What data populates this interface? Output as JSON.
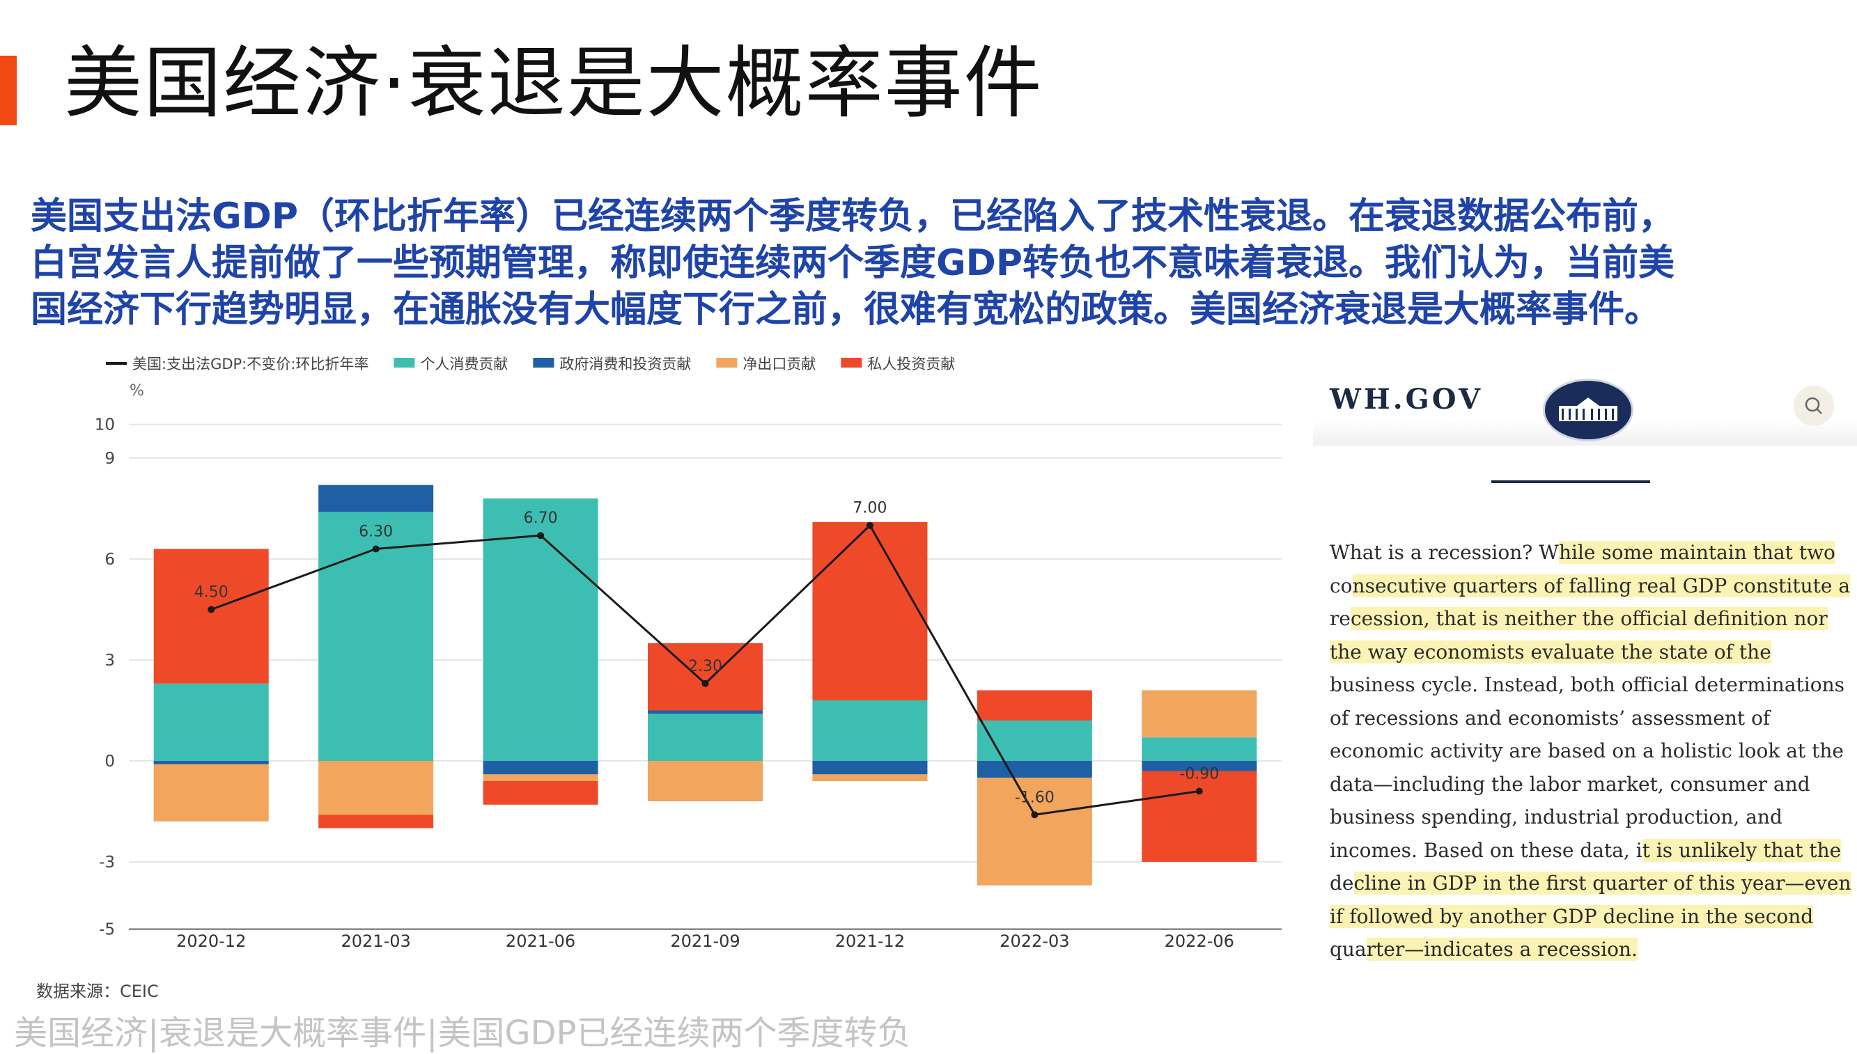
{
  "slide": {
    "title": "美国经济·衰退是大概率事件",
    "summary_lines": [
      "美国支出法GDP（环比折年率）已经连续两个季度转负，已经陷入了技术性衰退。在衰退数据公布前，",
      "白宫发言人提前做了一些预期管理，称即使连续两个季度GDP转负也不意味着衰退。我们认为，当前美",
      "国经济下行趋势明显，在通胀没有大幅度下行之前，很难有宽松的政策。美国经济衰退是大概率事件。"
    ],
    "source": "数据来源：CEIC",
    "footer": "美国经济|衰退是大概率事件|美国GDP已经连续两个季度转负",
    "accent_color": "#f04a12",
    "summary_color": "#1f44a8"
  },
  "chart_data": {
    "type": "bar",
    "stacked": true,
    "categories": [
      "2020-12",
      "2021-03",
      "2021-06",
      "2021-09",
      "2021-12",
      "2022-03",
      "2022-06"
    ],
    "unit": "%",
    "ylim": [
      -5,
      10
    ],
    "yticks": [
      10,
      9,
      6,
      3,
      0,
      -3,
      -5
    ],
    "grid": "horizontal",
    "legend_position": "top-left",
    "series": [
      {
        "name": "个人消费贡献",
        "color": "#3cbfb2",
        "values": [
          2.3,
          7.4,
          7.8,
          1.4,
          1.8,
          1.2,
          0.7
        ]
      },
      {
        "name": "政府消费和投资贡献",
        "color": "#1f5fa3",
        "values": [
          -0.1,
          0.8,
          -0.4,
          0.1,
          -0.4,
          -0.5,
          -0.3
        ]
      },
      {
        "name": "净出口贡献",
        "color": "#f2a55c",
        "values": [
          -1.7,
          -1.6,
          -0.2,
          -1.2,
          -0.2,
          -3.2,
          1.4
        ]
      },
      {
        "name": "私人投资贡献",
        "color": "#ee4a2a",
        "values": [
          4.0,
          -0.4,
          -0.7,
          2.0,
          5.3,
          0.9,
          -2.7
        ]
      }
    ],
    "line": {
      "name": "美国:支出法GDP:不变价:环比折年率",
      "color": "#1a1a1a",
      "values": [
        4.5,
        6.3,
        6.7,
        2.3,
        7.0,
        -1.6,
        -0.9
      ],
      "labels": [
        "4.50",
        "6.30",
        "6.70",
        "2.30",
        "7.00",
        "-1.60",
        "-0.90"
      ]
    }
  },
  "wh_panel": {
    "logo_text": "WH.GOV",
    "article_lines": [
      {
        "pre": "What is a recession? W",
        "hl": "hile some maintain that two"
      },
      {
        "pre": "co",
        "hl": "nsecutive quarters of falling real GDP constitute a"
      },
      {
        "pre": "re",
        "hl": "cession, that is neither the official definition nor"
      },
      {
        "pre": "",
        "hl": "the way economists evaluate the state of the"
      },
      {
        "pre": "business cycle. Instead, both official determinations",
        "hl": ""
      },
      {
        "pre": "of recessions and economists’ assessment of",
        "hl": ""
      },
      {
        "pre": "economic activity are based on a holistic look at the",
        "hl": ""
      },
      {
        "pre": "data—including the labor market, consumer and",
        "hl": ""
      },
      {
        "pre": "business spending, industrial production, and",
        "hl": ""
      },
      {
        "pre": "incomes. Based on these data, i",
        "hl": "t is unlikely that the"
      },
      {
        "pre": "de",
        "hl": "cline in GDP in the first quarter of this year—even"
      },
      {
        "pre": "",
        "hl": "if followed by another GDP decline in the second"
      },
      {
        "pre": "qua",
        "hl": "rter—indicates a recession."
      }
    ]
  }
}
